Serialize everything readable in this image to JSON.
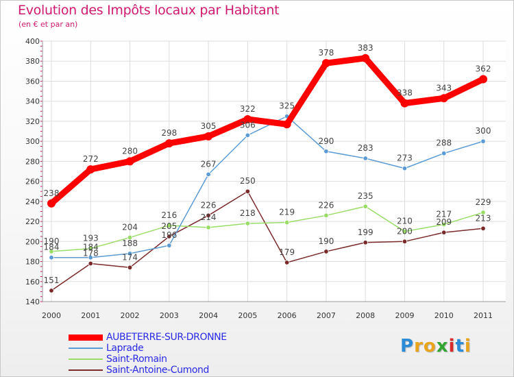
{
  "header": {
    "title": "Evolution des Impôts locaux par Habitant",
    "subtitle": "(en € et par an)"
  },
  "logo": {
    "text": "Proxiti",
    "colors": [
      "#2a8bd9",
      "#e8a41a",
      "#e8a41a",
      "#33a532",
      "#d92a2a",
      "#2a8bd9",
      "#e8a41a"
    ]
  },
  "chart_data": {
    "type": "line",
    "title": "Evolution des Impôts locaux par Habitant",
    "subtitle": "(en € et par an)",
    "xlabel": "",
    "ylabel": "",
    "x": [
      "2000",
      "2001",
      "2002",
      "2003",
      "2004",
      "2005",
      "2006",
      "2007",
      "2008",
      "2009",
      "2010",
      "2011"
    ],
    "ylim": [
      140,
      400
    ],
    "yticks": [
      140,
      160,
      180,
      200,
      220,
      240,
      260,
      280,
      300,
      320,
      340,
      360,
      380,
      400
    ],
    "grid": true,
    "legend_position": "bottom-left",
    "series": [
      {
        "name": "AUBETERRE-SUR-DRONNE",
        "color": "#ff0000",
        "values": [
          238,
          272,
          280,
          298,
          305,
          322,
          317,
          378,
          383,
          338,
          343,
          362
        ],
        "labels": [
          "238",
          "272",
          "280",
          "298",
          "305",
          "322",
          "",
          "378",
          "383",
          "338",
          "343",
          "362"
        ]
      },
      {
        "name": "Laprade",
        "color": "#5b9bd5",
        "values": [
          184,
          184,
          188,
          196,
          267,
          306,
          325,
          290,
          283,
          273,
          288,
          300
        ],
        "labels": [
          "184",
          "184",
          "188",
          "196",
          "267",
          "306",
          "325",
          "290",
          "283",
          "273",
          "288",
          "300"
        ]
      },
      {
        "name": "Saint-Romain",
        "color": "#99dd66",
        "values": [
          190,
          193,
          204,
          216,
          214,
          218,
          219,
          226,
          235,
          210,
          217,
          229
        ],
        "labels": [
          "190",
          "193",
          "204",
          "216",
          "214",
          "218",
          "219",
          "226",
          "235",
          "210",
          "217",
          "229"
        ]
      },
      {
        "name": "Saint-Antoine-Cumond",
        "color": "#7a2a2a",
        "values": [
          151,
          178,
          174,
          205,
          226,
          250,
          179,
          190,
          199,
          200,
          209,
          213
        ],
        "labels": [
          "151",
          "178",
          "174",
          "205",
          "226",
          "250",
          "179",
          "190",
          "199",
          "200",
          "209",
          "213"
        ]
      }
    ]
  }
}
